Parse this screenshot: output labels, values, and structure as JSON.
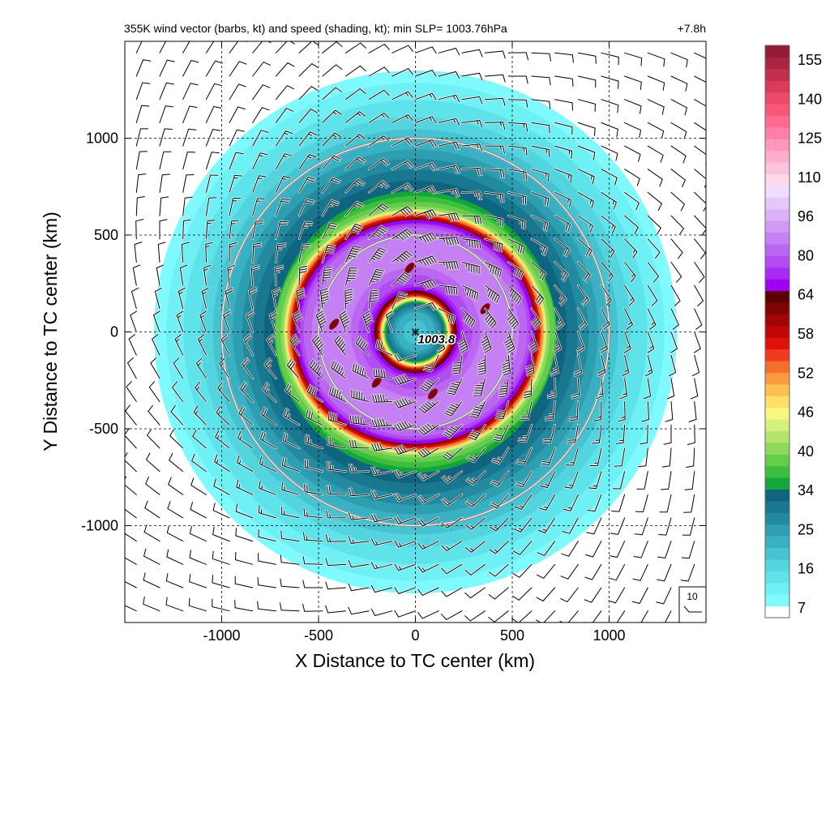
{
  "header": {
    "title": "355K wind vector (barbs, kt) and speed (shading, kt); min SLP= 1003.76hPa",
    "time": "+7.8h"
  },
  "chart_data": {
    "type": "heatmap",
    "title": "355K wind vector (barbs, kt) and speed (shading, kt); min SLP= 1003.76hPa",
    "xlabel": "X Distance to TC center (km)",
    "ylabel": "Y Distance to TC center (km)",
    "xlim": [
      -1500,
      1500
    ],
    "ylim": [
      -1500,
      1500
    ],
    "xticks": [
      -1000,
      -500,
      0,
      500,
      1000
    ],
    "yticks": [
      -1000,
      -500,
      0,
      500,
      1000
    ],
    "xtick_labels": [
      "-1000",
      "-500",
      "0",
      "500",
      "1000"
    ],
    "ytick_labels": [
      "-1000",
      "-500",
      "0",
      "500",
      "1000"
    ],
    "grid": true,
    "range_circles_km": [
      500,
      1000
    ],
    "center": {
      "x": 0,
      "y": 0,
      "marker": "×",
      "label": "1003.8"
    },
    "min_slp_hpa": 1003.76,
    "reference_barb": {
      "label": "10",
      "speed": 10
    },
    "speed_profile_kt": {
      "radius_km": [
        0,
        100,
        150,
        200,
        250,
        350,
        450,
        550,
        600,
        650,
        700,
        750,
        800,
        1000,
        1350
      ],
      "speed": [
        18,
        22,
        30,
        58,
        75,
        85,
        88,
        82,
        60,
        40,
        36,
        33,
        30,
        20,
        8
      ]
    },
    "colorbar": {
      "labels": [
        "155",
        "140",
        "125",
        "110",
        "96",
        "80",
        "64",
        "58",
        "52",
        "46",
        "40",
        "34",
        "25",
        "16",
        "7"
      ],
      "colors": [
        "#ffffff",
        "#7ffaff",
        "#6ef0f5",
        "#5fe3ea",
        "#53d4de",
        "#46c3d0",
        "#3ab1c2",
        "#2e9eb1",
        "#238aa0",
        "#19778f",
        "#0f6580",
        "#15a63c",
        "#3cbf3c",
        "#66cc4c",
        "#8fd95c",
        "#b3e56e",
        "#d6f07c",
        "#f7f781",
        "#ffe066",
        "#fcc14e",
        "#f89b3e",
        "#f46e2c",
        "#ef3b1e",
        "#e0110d",
        "#c20606",
        "#a10505",
        "#7e0303",
        "#5c0101",
        "#9d00f5",
        "#a72bf3",
        "#b14cf2",
        "#bb67f2",
        "#c580f3",
        "#d09af5",
        "#dab2f7",
        "#e5c8f8",
        "#f0dcfb",
        "#ffd8ec",
        "#ffc2dd",
        "#ffaccd",
        "#ff96bc",
        "#ff7fa8",
        "#ff6a91",
        "#f7587a",
        "#ea4a67",
        "#d83c58",
        "#c22f4b",
        "#aa2541",
        "#921c38"
      ]
    }
  },
  "colors": {
    "background": "#ffffff",
    "axis": "#000000",
    "circles": "#888888"
  }
}
